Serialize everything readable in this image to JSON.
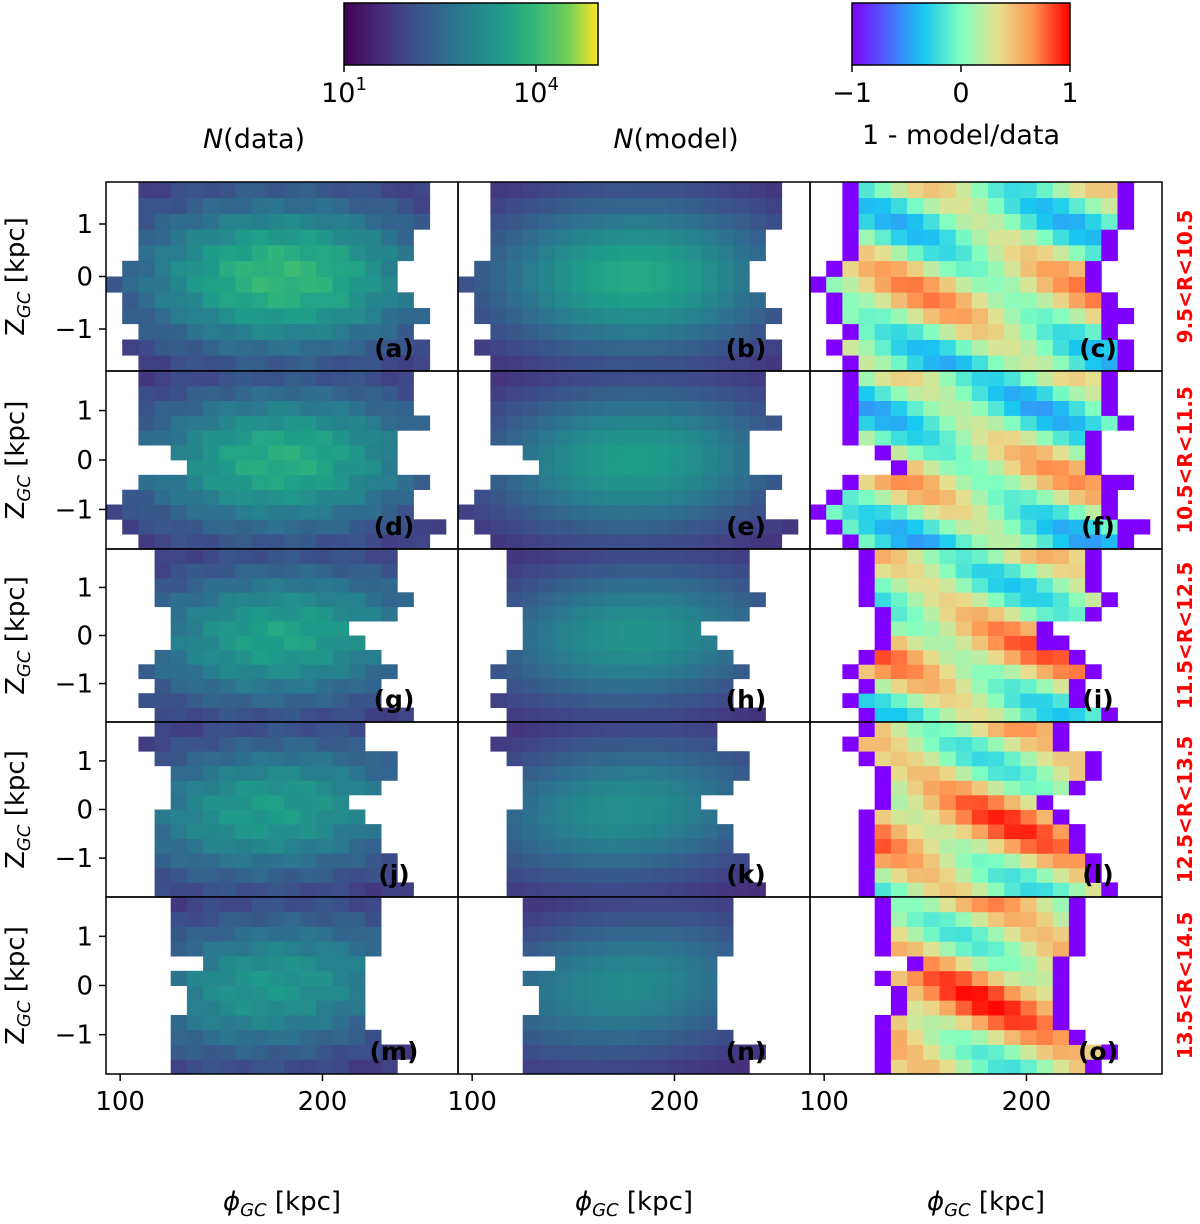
{
  "chart_data": {
    "type": "heatmap",
    "colorbars": [
      {
        "cmap": "viridis",
        "scale": "log",
        "range": [
          10,
          100000
        ],
        "ticks": [
          "10^1",
          "10^4"
        ],
        "tick_values": [
          10,
          10000
        ],
        "label": "N(data)"
      },
      {
        "cmap": "rainbow",
        "scale": "linear",
        "range": [
          -1,
          1
        ],
        "ticks": [
          "−1",
          "0",
          "1"
        ],
        "tick_values": [
          -1,
          0,
          1
        ],
        "label": "1 - model/data"
      }
    ],
    "column_titles": [
      "N(data)",
      "N(model)",
      "1 - model/data"
    ],
    "xlabel": "ϕ",
    "xlabel_sub": "GC",
    "xlabel_unit": "[kpc]",
    "ylabel": "Z",
    "ylabel_sub": "GC",
    "ylabel_unit": "[kpc]",
    "xlim": [
      93,
      267
    ],
    "ylim": [
      -1.8,
      1.8
    ],
    "xticks": [
      100,
      200
    ],
    "yticks": [
      1,
      0,
      -1
    ],
    "row_labels": [
      "9.5<R<10.5",
      "10.5<R<11.5",
      "11.5<R<12.5",
      "12.5<R<13.5",
      "13.5<R<14.5"
    ],
    "panel_labels": [
      "(a)",
      "(b)",
      "(c)",
      "(d)",
      "(e)",
      "(f)",
      "(g)",
      "(h)",
      "(i)",
      "(j)",
      "(k)",
      "(l)",
      "(m)",
      "(n)",
      "(o)"
    ],
    "grid": {
      "x_start": 93,
      "x_step": 8,
      "nx": 22,
      "y_start": -1.8,
      "y_step": 0.3,
      "ny": 12
    },
    "rows": [
      {
        "phi_min": [
          107,
          101,
          111,
          101,
          101,
          93,
          103,
          108,
          110,
          110,
          112,
          110
        ],
        "phi_max": [
          255,
          251,
          247,
          249,
          248,
          234,
          238,
          243,
          247,
          251,
          251,
          251
        ],
        "peak_center": 180,
        "peak_log": 4.0,
        "tilt": 0,
        "bias": 0.15
      },
      {
        "phi_min": [
          111,
          104,
          93,
          101,
          111,
          133,
          125,
          108,
          110,
          109,
          110,
          111
        ],
        "phi_max": [
          255,
          257,
          247,
          246,
          249,
          236,
          236,
          236,
          254,
          247,
          248,
          248
        ],
        "peak_center": 180,
        "peak_log": 3.8,
        "tilt": 0.05,
        "bias": 0.1
      },
      {
        "phi_min": [
          117,
          111,
          117,
          109,
          117,
          125,
          125,
          125,
          117,
          117,
          117,
          117
        ],
        "phi_max": [
          246,
          232,
          231,
          240,
          232,
          217,
          215,
          239,
          246,
          240,
          240,
          240
        ],
        "peak_center": 180,
        "peak_log": 3.6,
        "tilt": 0.1,
        "bias": 0.25
      },
      {
        "phi_min": [
          117,
          117,
          117,
          117,
          117,
          117,
          125,
          125,
          125,
          117,
          109,
          117
        ],
        "phi_max": [
          247,
          239,
          239,
          231,
          231,
          224,
          215,
          232,
          240,
          240,
          223,
          223
        ],
        "peak_center": 175,
        "peak_log": 3.5,
        "tilt": 0.15,
        "bias": 0.35
      },
      {
        "phi_min": [
          125,
          125,
          125,
          125,
          133,
          133,
          125,
          141,
          125,
          125,
          125,
          125
        ],
        "phi_max": [
          239,
          247,
          231,
          223,
          223,
          223,
          223,
          223,
          230,
          230,
          230,
          230
        ],
        "peak_center": 175,
        "peak_log": 3.4,
        "tilt": 0.2,
        "bias": 0.4
      }
    ]
  }
}
